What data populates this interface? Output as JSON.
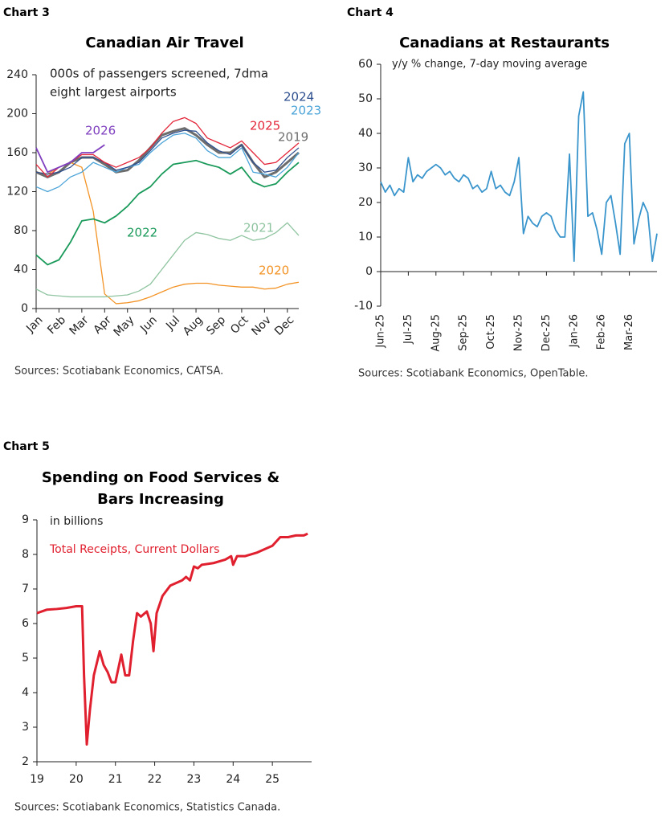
{
  "chart_data": [
    {
      "type": "line",
      "label": "Chart 3",
      "title": "Canadian Air Travel",
      "annotations": [
        "000s of passengers screened, 7dma",
        "eight largest airports"
      ],
      "source": "Sources: Scotiabank Economics, CATSA.",
      "categories": [
        "Jan",
        null,
        "Feb",
        null,
        "Mar",
        null,
        "Apr",
        null,
        "May",
        null,
        "Jun",
        null,
        "Jul",
        null,
        "Aug",
        null,
        "Sep",
        null,
        "Oct",
        null,
        "Nov",
        null,
        "Dec",
        null
      ],
      "ylim": [
        0,
        240
      ],
      "yticks": [
        0,
        40,
        80,
        120,
        160,
        200,
        240
      ],
      "series": [
        {
          "name": "2019",
          "color": "#6d6d6d",
          "values": [
            140,
            135,
            140,
            150,
            155,
            155,
            148,
            140,
            142,
            152,
            165,
            178,
            182,
            185,
            178,
            168,
            160,
            160,
            168,
            150,
            135,
            140,
            150,
            160
          ]
        },
        {
          "name": "2020",
          "color": "#f39325",
          "values": [
            140,
            138,
            145,
            150,
            145,
            100,
            15,
            5,
            6,
            8,
            12,
            17,
            22,
            25,
            26,
            26,
            24,
            23,
            22,
            22,
            20,
            21,
            25,
            27
          ]
        },
        {
          "name": "2021",
          "color": "#8fc4a0",
          "values": [
            20,
            14,
            13,
            12,
            12,
            12,
            12,
            13,
            14,
            18,
            25,
            40,
            55,
            70,
            78,
            76,
            72,
            70,
            75,
            70,
            72,
            78,
            88,
            75
          ]
        },
        {
          "name": "2022",
          "color": "#1a9a5a",
          "values": [
            55,
            45,
            50,
            68,
            90,
            92,
            88,
            95,
            105,
            118,
            125,
            138,
            148,
            150,
            152,
            148,
            145,
            138,
            145,
            130,
            125,
            128,
            140,
            150
          ]
        },
        {
          "name": "2023",
          "color": "#4aa3d8",
          "values": [
            125,
            120,
            125,
            135,
            140,
            150,
            145,
            140,
            145,
            148,
            160,
            170,
            178,
            180,
            175,
            162,
            155,
            155,
            165,
            140,
            138,
            135,
            145,
            160
          ]
        },
        {
          "name": "2024",
          "color": "#2e4f8f",
          "values": [
            140,
            138,
            140,
            145,
            155,
            155,
            150,
            142,
            145,
            150,
            162,
            175,
            180,
            183,
            182,
            170,
            162,
            158,
            168,
            150,
            140,
            142,
            155,
            165
          ]
        },
        {
          "name": "2025",
          "color": "#e3263a",
          "values": [
            148,
            135,
            145,
            150,
            158,
            158,
            150,
            145,
            150,
            155,
            165,
            180,
            192,
            196,
            190,
            175,
            170,
            165,
            172,
            160,
            148,
            150,
            160,
            170
          ]
        },
        {
          "name": "2026",
          "color": "#7f3fbf",
          "values": [
            165,
            140,
            145,
            150,
            160,
            160,
            168,
            null,
            null,
            null,
            null,
            null,
            null,
            null,
            null,
            null,
            null,
            null,
            null,
            null,
            null,
            null,
            null,
            null
          ]
        }
      ]
    },
    {
      "type": "line",
      "label": "Chart 4",
      "title": "Canadians at Restaurants",
      "subtitle": "y/y % change, 7-day moving average",
      "source": "Sources: Scotiabank Economics, OpenTable.",
      "categories": [
        "Jun-25",
        null,
        null,
        null,
        null,
        null,
        "Jul-25",
        null,
        null,
        null,
        null,
        null,
        "Aug-25",
        null,
        null,
        null,
        null,
        null,
        "Sep-25",
        null,
        null,
        null,
        null,
        null,
        "Oct-25",
        null,
        null,
        null,
        null,
        null,
        "Nov-25",
        null,
        null,
        null,
        null,
        null,
        "Dec-25",
        null,
        null,
        null,
        null,
        null,
        "Jan-26",
        null,
        null,
        null,
        null,
        null,
        "Feb-26",
        null,
        null,
        null,
        null,
        null,
        "Mar-26",
        null,
        null,
        null,
        null,
        null,
        null
      ],
      "values": [
        26,
        23,
        25,
        22,
        24,
        23,
        33,
        26,
        28,
        27,
        29,
        30,
        31,
        30,
        28,
        29,
        27,
        26,
        28,
        27,
        24,
        25,
        23,
        24,
        29,
        24,
        25,
        23,
        22,
        26,
        33,
        11,
        16,
        14,
        13,
        16,
        17,
        16,
        12,
        10,
        10,
        34,
        3,
        45,
        52,
        16,
        17,
        12,
        5,
        20,
        22,
        14,
        5,
        37,
        40,
        8,
        15,
        20,
        17,
        3,
        11
      ],
      "color": "#3a95cc",
      "ylim": [
        -10,
        60
      ],
      "yticks": [
        -10,
        0,
        10,
        20,
        30,
        40,
        50,
        60
      ]
    },
    {
      "type": "line",
      "label": "Chart 5",
      "title": [
        "Spending on Food Services &",
        "Bars Increasing"
      ],
      "annotations": [
        "in billions",
        "Total Receipts, Current Dollars"
      ],
      "source": "Sources: Scotiabank Economics, Statistics Canada.",
      "x": [
        19.0,
        19.25,
        19.5,
        19.75,
        20.0,
        20.15,
        20.2,
        20.27,
        20.35,
        20.45,
        20.6,
        20.7,
        20.8,
        20.9,
        21.0,
        21.15,
        21.25,
        21.35,
        21.45,
        21.55,
        21.65,
        21.8,
        21.9,
        21.97,
        22.05,
        22.2,
        22.4,
        22.7,
        22.8,
        22.9,
        23.0,
        23.1,
        23.2,
        23.5,
        23.8,
        23.95,
        24.0,
        24.1,
        24.3,
        24.6,
        24.9,
        25.0,
        25.2,
        25.4,
        25.6,
        25.8,
        25.9
      ],
      "values": [
        6.3,
        6.4,
        6.42,
        6.45,
        6.5,
        6.5,
        4.5,
        2.5,
        3.5,
        4.5,
        5.2,
        4.8,
        4.6,
        4.3,
        4.3,
        5.1,
        4.5,
        4.5,
        5.5,
        6.3,
        6.2,
        6.35,
        6.0,
        5.2,
        6.3,
        6.8,
        7.1,
        7.25,
        7.35,
        7.25,
        7.65,
        7.6,
        7.7,
        7.75,
        7.85,
        7.95,
        7.7,
        7.95,
        7.95,
        8.05,
        8.2,
        8.25,
        8.5,
        8.5,
        8.55,
        8.55,
        8.6
      ],
      "color": "#e0202f",
      "xlim": [
        19,
        26
      ],
      "xticks": [
        19,
        20,
        21,
        22,
        23,
        24,
        25
      ],
      "ylim": [
        2,
        9
      ],
      "yticks": [
        2,
        3,
        4,
        5,
        6,
        7,
        8,
        9
      ]
    }
  ]
}
